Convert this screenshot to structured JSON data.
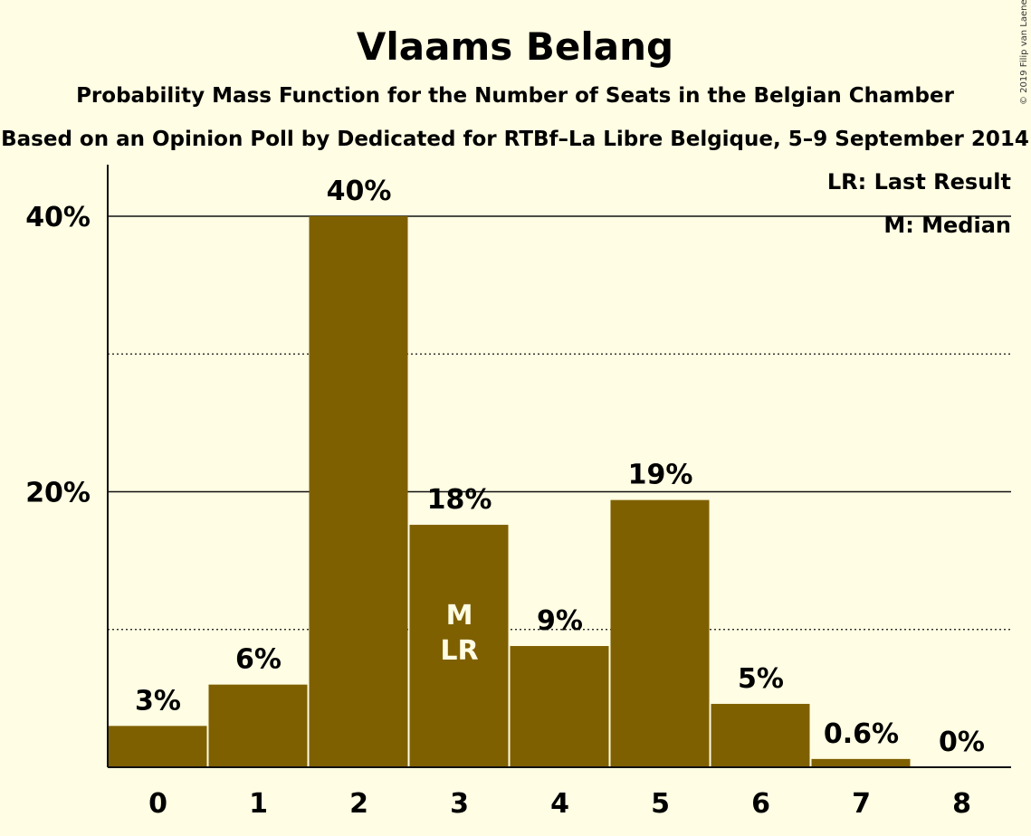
{
  "title": "Vlaams Belang",
  "subtitle": "Probability Mass Function for the Number of Seats in the Belgian Chamber",
  "subtitle2": "Based on an Opinion Poll by Dedicated for RTBf–La Libre Belgique, 5–9 September 2014",
  "copyright": "© 2019 Filip van Laenen",
  "legend": {
    "lr": "LR: Last Result",
    "m": "M: Median"
  },
  "colors": {
    "bar": "#7f6000",
    "background": "#fffde3",
    "axis": "#111111"
  },
  "chart_data": {
    "type": "bar",
    "categories": [
      "0",
      "1",
      "2",
      "3",
      "4",
      "5",
      "6",
      "7",
      "8"
    ],
    "values": [
      3,
      6,
      40,
      17.6,
      8.8,
      19.4,
      4.6,
      0.6,
      0
    ],
    "value_labels": [
      "3%",
      "6%",
      "40%",
      "18%",
      "9%",
      "19%",
      "5%",
      "0.6%",
      "0%"
    ],
    "yticks": [
      {
        "value": 20,
        "label": "20%"
      },
      {
        "value": 40,
        "label": "40%"
      }
    ],
    "ylim": [
      0,
      40
    ],
    "grid_solid": [
      20,
      40
    ],
    "grid_dotted": [
      10,
      30
    ],
    "median_index": 3,
    "last_result_index": 3,
    "median_marker": "M",
    "last_result_marker": "LR"
  }
}
